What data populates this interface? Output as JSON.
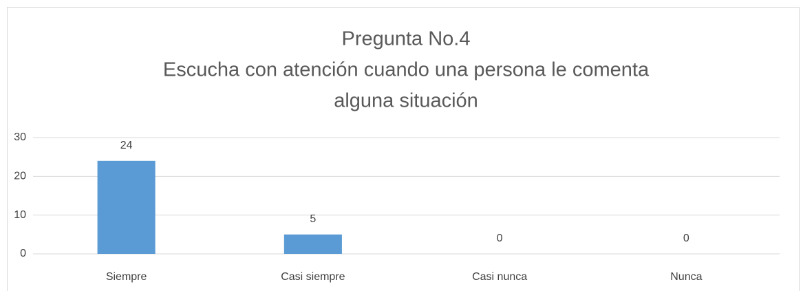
{
  "chart_data": {
    "type": "bar",
    "title": [
      "Pregunta No.4",
      "Escucha con atención cuando una persona le comenta",
      "alguna situación"
    ],
    "categories": [
      "Siempre",
      "Casi siempre",
      "Casi nunca",
      "Nunca"
    ],
    "values": [
      24,
      5,
      0,
      0
    ],
    "color": "#5b9bd5",
    "ylim": [
      0,
      30
    ],
    "yticks": [
      0,
      10,
      20,
      30
    ],
    "grid": true,
    "data_labels": true
  }
}
